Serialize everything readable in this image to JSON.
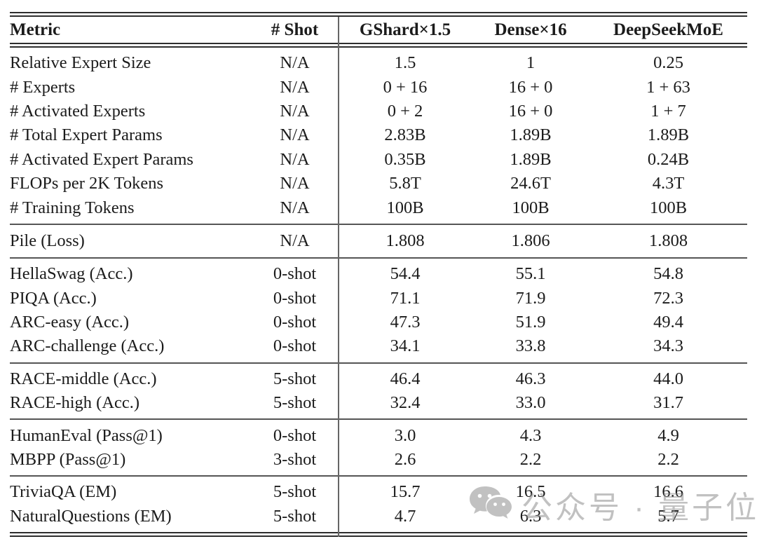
{
  "table": {
    "columns": [
      "Metric",
      "# Shot",
      "GShard×1.5",
      "Dense×16",
      "DeepSeekMoE"
    ],
    "sections": [
      {
        "rows": [
          [
            "Relative Expert Size",
            "N/A",
            "1.5",
            "1",
            "0.25"
          ],
          [
            "# Experts",
            "N/A",
            "0 + 16",
            "16 + 0",
            "1 + 63"
          ],
          [
            "# Activated Experts",
            "N/A",
            "0 + 2",
            "16 + 0",
            "1 + 7"
          ],
          [
            "# Total Expert Params",
            "N/A",
            "2.83B",
            "1.89B",
            "1.89B"
          ],
          [
            "# Activated Expert Params",
            "N/A",
            "0.35B",
            "1.89B",
            "0.24B"
          ],
          [
            "FLOPs per 2K Tokens",
            "N/A",
            "5.8T",
            "24.6T",
            "4.3T"
          ],
          [
            "# Training Tokens",
            "N/A",
            "100B",
            "100B",
            "100B"
          ]
        ]
      },
      {
        "rows": [
          [
            "Pile (Loss)",
            "N/A",
            "1.808",
            "1.806",
            "1.808"
          ]
        ]
      },
      {
        "rows": [
          [
            "HellaSwag (Acc.)",
            "0-shot",
            "54.4",
            "55.1",
            "54.8"
          ],
          [
            "PIQA (Acc.)",
            "0-shot",
            "71.1",
            "71.9",
            "72.3"
          ],
          [
            "ARC-easy (Acc.)",
            "0-shot",
            "47.3",
            "51.9",
            "49.4"
          ],
          [
            "ARC-challenge (Acc.)",
            "0-shot",
            "34.1",
            "33.8",
            "34.3"
          ]
        ]
      },
      {
        "rows": [
          [
            "RACE-middle (Acc.)",
            "5-shot",
            "46.4",
            "46.3",
            "44.0"
          ],
          [
            "RACE-high (Acc.)",
            "5-shot",
            "32.4",
            "33.0",
            "31.7"
          ]
        ]
      },
      {
        "rows": [
          [
            "HumanEval (Pass@1)",
            "0-shot",
            "3.0",
            "4.3",
            "4.9"
          ],
          [
            "MBPP (Pass@1)",
            "3-shot",
            "2.6",
            "2.2",
            "2.2"
          ]
        ]
      },
      {
        "rows": [
          [
            "TriviaQA (EM)",
            "5-shot",
            "15.7",
            "16.5",
            "16.6"
          ],
          [
            "NaturalQuestions (EM)",
            "5-shot",
            "4.7",
            "6.3",
            "5.7"
          ]
        ]
      }
    ]
  },
  "watermark": {
    "icon": "wechat-icon",
    "text": "公众号 · 量子位",
    "color": "#8f8f8f"
  },
  "colors": {
    "text": "#1b1b1b",
    "rule_dark": "#2e2e2e",
    "rule_gray": "#555555",
    "background": "#ffffff"
  }
}
